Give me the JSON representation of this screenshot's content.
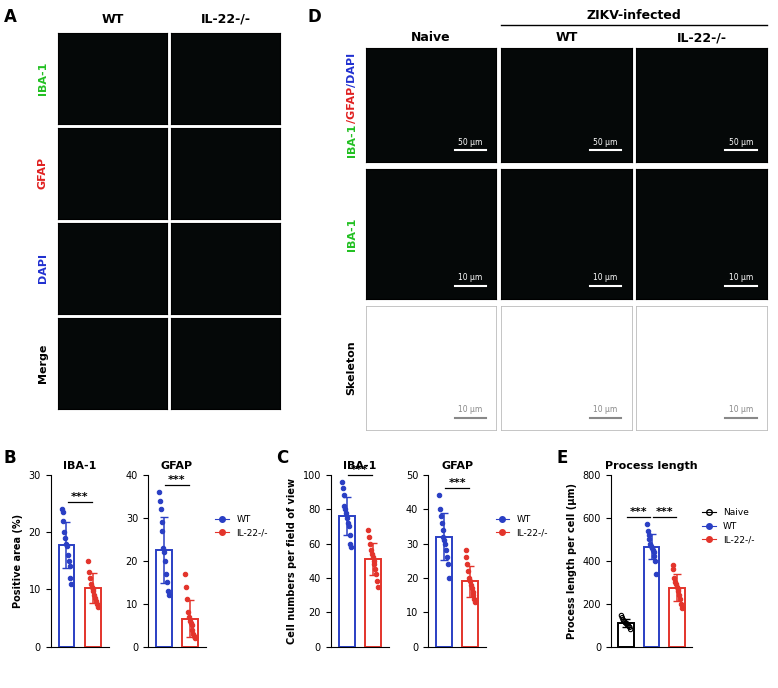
{
  "image_panels": [
    {
      "label": "A",
      "columns": [
        "WT",
        "IL-22-/-"
      ],
      "rows": [
        {
          "label_parts": [
            {
              "text": "IBA-1",
              "color": "#22c022"
            }
          ]
        },
        {
          "label_parts": [
            {
              "text": "GFAP",
              "color": "#e02020"
            }
          ]
        },
        {
          "label_parts": [
            {
              "text": "DAPI",
              "color": "#2030d0"
            }
          ]
        },
        {
          "label_parts": [
            {
              "text": "Merge",
              "color": "#000000"
            }
          ]
        }
      ]
    },
    {
      "label": "D",
      "columns": [
        "Naive",
        "WT",
        "IL-22-/-"
      ],
      "group": {
        "title": "ZIKV-infected",
        "columns": [
          1,
          2
        ]
      },
      "rows": [
        {
          "label_parts": [
            {
              "text": "IBA-1",
              "color": "#22c022"
            },
            {
              "text": "/GFAP",
              "color": "#e02020"
            },
            {
              "text": "/DAPI",
              "color": "#2030d0"
            }
          ],
          "scale_bar": "50 μm",
          "kind": "fluorescence"
        },
        {
          "label_parts": [
            {
              "text": "IBA-1",
              "color": "#22c022"
            }
          ],
          "scale_bar": "10 μm",
          "kind": "fluorescence"
        },
        {
          "label_parts": [
            {
              "text": "Skeleton",
              "color": "#000000"
            }
          ],
          "scale_bar": "10 μm",
          "kind": "skeleton"
        }
      ]
    }
  ],
  "chart_data": [
    {
      "label": "B",
      "type": "bar",
      "title": "IBA-1",
      "y_label": "Positive area (%)",
      "ylim": [
        0,
        30
      ],
      "yticks": [
        0,
        10,
        20,
        30
      ],
      "tick_labels": "y",
      "series": [
        {
          "name": "WT",
          "color": "#2a3fc4",
          "marker": "circle",
          "values": [
            17.8
          ],
          "errors": [
            4.0
          ],
          "points": [
            [
              24,
              23.5,
              22,
              20,
              19,
              18,
              17.5,
              16,
              15,
              14,
              12,
              11
            ]
          ]
        },
        {
          "name": "IL-22-/-",
          "color": "#e3342b",
          "marker": "circle",
          "values": [
            10.2
          ],
          "errors": [
            2.6
          ],
          "points": [
            [
              15,
              13,
              12,
              11,
              10.5,
              10,
              9.8,
              9,
              8.5,
              8,
              7.5,
              7
            ]
          ]
        }
      ],
      "significance": [
        {
          "pair": [
            0,
            1
          ],
          "label": "***"
        }
      ]
    },
    {
      "type": "bar",
      "title": "GFAP",
      "ylim": [
        0,
        40
      ],
      "yticks": [
        0,
        10,
        20,
        30,
        40
      ],
      "tick_labels": "y",
      "legend": "right",
      "series": [
        {
          "name": "WT",
          "color": "#2a3fc4",
          "marker": "circle",
          "values": [
            22.5
          ],
          "errors": [
            7.6
          ],
          "points": [
            [
              36,
              34,
              32,
              29,
              27,
              23,
              22,
              20,
              17,
              15,
              13,
              12
            ]
          ]
        },
        {
          "name": "IL-22-/-",
          "color": "#e3342b",
          "marker": "circle",
          "values": [
            6.5
          ],
          "errors": [
            4.3
          ],
          "points": [
            [
              17,
              14,
              11,
              8,
              7,
              6,
              5.5,
              5,
              4,
              3,
              2.5,
              2
            ]
          ]
        }
      ],
      "significance": [
        {
          "pair": [
            0,
            1
          ],
          "label": "***"
        }
      ]
    },
    {
      "label": "C",
      "type": "bar",
      "title": "IBA-1",
      "y_label": "Cell numbers per field of view",
      "ylim": [
        0,
        100
      ],
      "yticks": [
        0,
        20,
        40,
        60,
        80,
        100
      ],
      "tick_labels": "y",
      "series": [
        {
          "name": "WT",
          "color": "#2a3fc4",
          "marker": "circle",
          "values": [
            76
          ],
          "errors": [
            11
          ],
          "points": [
            [
              96,
              92,
              88,
              82,
              80,
              78,
              75,
              72,
              70,
              65,
              60,
              58
            ]
          ]
        },
        {
          "name": "IL-22-/-",
          "color": "#e3342b",
          "marker": "circle",
          "values": [
            51
          ],
          "errors": [
            9.5
          ],
          "points": [
            [
              68,
              64,
              60,
              56,
              54,
              52,
              50,
              48,
              45,
              42,
              38,
              35
            ]
          ]
        }
      ],
      "significance": [
        {
          "pair": [
            0,
            1
          ],
          "label": "***"
        }
      ]
    },
    {
      "type": "bar",
      "title": "GFAP",
      "ylim": [
        0,
        50
      ],
      "yticks": [
        0,
        10,
        20,
        30,
        40,
        50
      ],
      "tick_labels": "y",
      "legend": "right",
      "series": [
        {
          "name": "WT",
          "color": "#2a3fc4",
          "marker": "circle",
          "values": [
            32
          ],
          "errors": [
            6.8
          ],
          "points": [
            [
              44,
              40,
              38,
              36,
              34,
              32,
              31,
              30,
              28,
              26,
              24,
              20
            ]
          ]
        },
        {
          "name": "IL-22-/-",
          "color": "#e3342b",
          "marker": "circle",
          "values": [
            19
          ],
          "errors": [
            4.6
          ],
          "points": [
            [
              28,
              26,
              24,
              22,
              20,
              19,
              18,
              17,
              16,
              15,
              14,
              13
            ]
          ]
        }
      ],
      "significance": [
        {
          "pair": [
            0,
            1
          ],
          "label": "***"
        }
      ]
    },
    {
      "label": "E",
      "type": "bar",
      "title": "Process length",
      "y_label": "Process length per cell (μm)",
      "ylim": [
        0,
        800
      ],
      "yticks": [
        0,
        200,
        400,
        600,
        800
      ],
      "tick_labels": "y",
      "legend": "right",
      "series": [
        {
          "name": "Naive",
          "color": "#000000",
          "marker": "hollow_circle",
          "values": [
            111
          ],
          "errors": [
            19
          ],
          "points": [
            [
              145,
              135,
              125,
              120,
              115,
              110,
              108,
              105,
              100,
              95,
              90,
              80
            ]
          ]
        },
        {
          "name": "WT",
          "color": "#2a3fc4",
          "marker": "circle",
          "values": [
            466
          ],
          "errors": [
            60
          ],
          "points": [
            [
              570,
              540,
              520,
              500,
              480,
              470,
              460,
              450,
              440,
              420,
              400,
              340
            ]
          ]
        },
        {
          "name": "IL-22-/-",
          "color": "#e3342b",
          "marker": "circle",
          "values": [
            275
          ],
          "errors": [
            62
          ],
          "points": [
            [
              380,
              360,
              320,
              300,
              290,
              280,
              270,
              260,
              240,
              220,
              200,
              180
            ]
          ]
        }
      ],
      "significance": [
        {
          "pair": [
            0,
            1
          ],
          "label": "***"
        },
        {
          "pair": [
            1,
            2
          ],
          "label": "***"
        }
      ]
    }
  ]
}
